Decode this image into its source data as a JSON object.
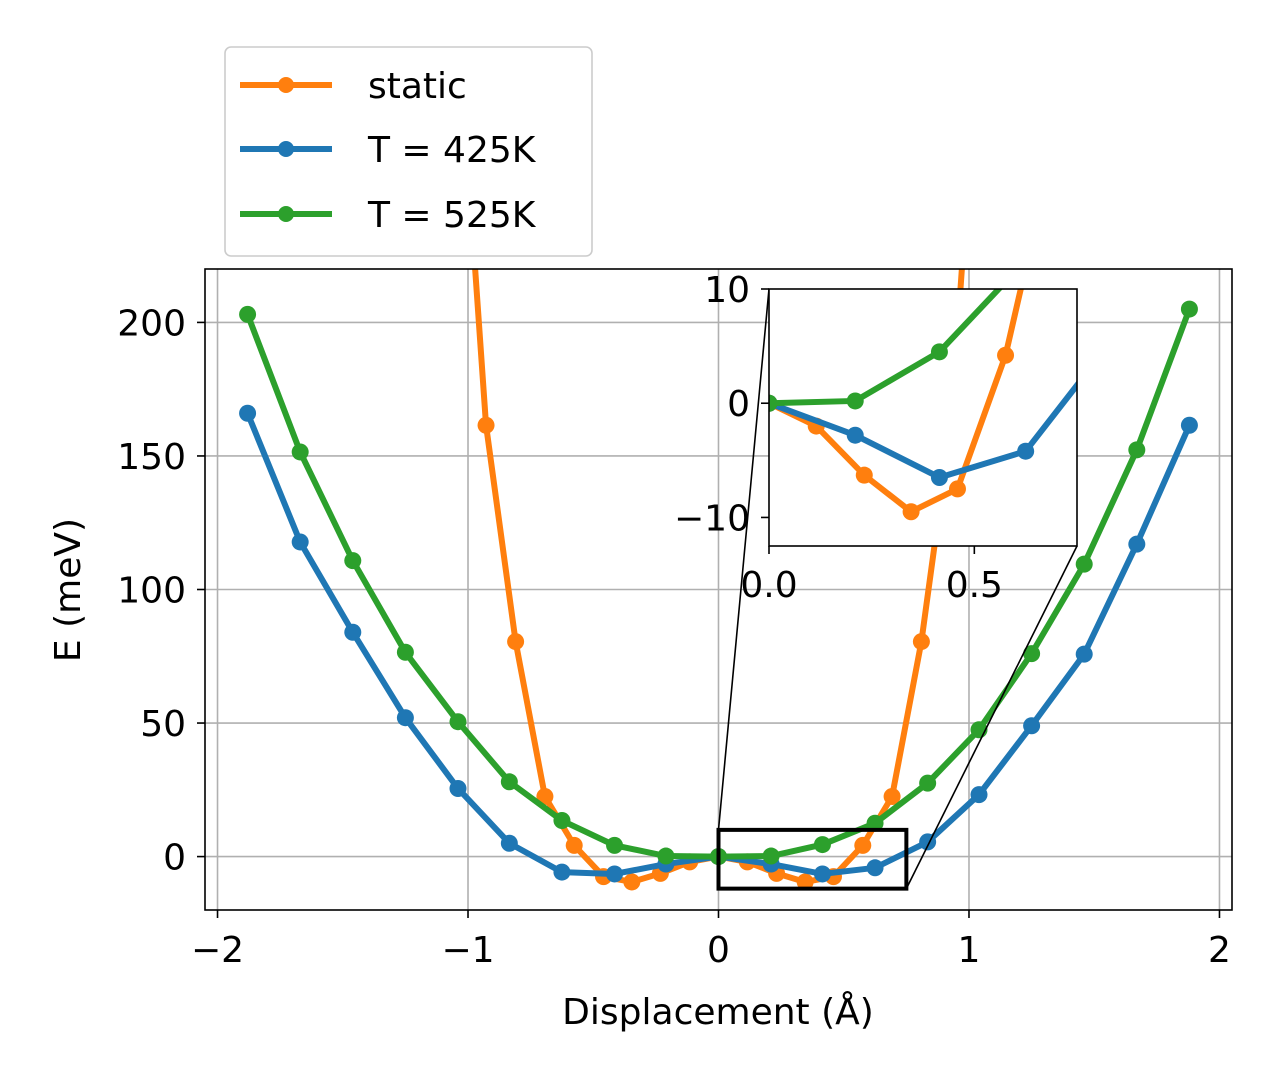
{
  "chart_data": [
    {
      "type": "line",
      "xlabel": "Displacement (Å)",
      "ylabel": "E (meV)",
      "xlim": [
        -2.05,
        2.05
      ],
      "ylim": [
        -20,
        220
      ],
      "xticks": [
        -2,
        -1,
        0,
        1,
        2
      ],
      "xtick_labels": [
        "−2",
        "−1",
        "0",
        "1",
        "2"
      ],
      "yticks": [
        0,
        50,
        100,
        150,
        200
      ],
      "ytick_labels": [
        "0",
        "50",
        "100",
        "150",
        "200"
      ],
      "grid": true,
      "legend_placement": "above-top-left",
      "legend": [
        "static",
        "T = 425K",
        "T = 525K"
      ],
      "series": [
        {
          "name": "static",
          "color": "#ff7f0e",
          "x": [
            -1.046,
            -0.928,
            -0.81,
            -0.693,
            -0.576,
            -0.459,
            -0.346,
            -0.232,
            -0.115,
            0.0,
            0.115,
            0.232,
            0.346,
            0.459,
            0.576,
            0.693,
            0.81,
            0.928,
            1.046
          ],
          "y": [
            320,
            161.5,
            80.5,
            22.5,
            4.2,
            -7.5,
            -9.5,
            -6.3,
            -2.0,
            0.0,
            -2.0,
            -6.3,
            -9.5,
            -7.5,
            4.2,
            22.5,
            80.5,
            161.5,
            320
          ]
        },
        {
          "name": "T = 425K",
          "color": "#1f77b4",
          "x": [
            -1.88,
            -1.67,
            -1.46,
            -1.25,
            -1.04,
            -0.835,
            -0.625,
            -0.415,
            -0.21,
            0.0,
            0.21,
            0.415,
            0.625,
            0.835,
            1.04,
            1.25,
            1.46,
            1.67,
            1.88
          ],
          "y": [
            166,
            117.8,
            84,
            52,
            25.5,
            5,
            -5.8,
            -6.5,
            -2.8,
            0.0,
            -2.8,
            -6.5,
            -4.2,
            5.5,
            23.2,
            49,
            75.8,
            117,
            161.5
          ]
        },
        {
          "name": "T = 525K",
          "color": "#2ca02c",
          "x": [
            -1.88,
            -1.67,
            -1.46,
            -1.25,
            -1.04,
            -0.835,
            -0.625,
            -0.415,
            -0.21,
            0.0,
            0.21,
            0.415,
            0.625,
            0.835,
            1.04,
            1.25,
            1.46,
            1.67,
            1.88
          ],
          "y": [
            203,
            151.5,
            110.8,
            76.5,
            50.5,
            28,
            13.5,
            4.2,
            0.2,
            0.0,
            0.2,
            4.5,
            12.5,
            27.5,
            47.5,
            76,
            109.5,
            152.3,
            205
          ]
        }
      ],
      "zoom_region": {
        "xlim": [
          0,
          0.75
        ],
        "ylim": [
          -12,
          10
        ]
      }
    },
    {
      "type": "line",
      "role": "inset",
      "xlim": [
        0,
        0.75
      ],
      "ylim": [
        -12.5,
        10
      ],
      "xticks": [
        0.0,
        0.5
      ],
      "xtick_labels": [
        "0.0",
        "0.5"
      ],
      "yticks": [
        -10,
        0,
        10
      ],
      "ytick_labels": [
        "−10",
        "0",
        "10"
      ],
      "grid": false
    }
  ]
}
